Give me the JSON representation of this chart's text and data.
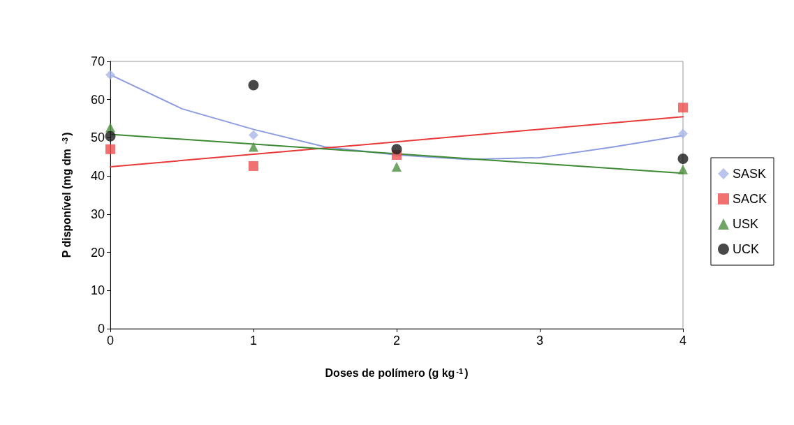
{
  "chart_data": {
    "type": "scatter",
    "xlabel": "Doses de polímero (g kg$^{-1}$)",
    "ylabel": "P disponível (mg dm $^{-3}$)",
    "xlim": [
      0,
      4
    ],
    "xticks": [
      0,
      1,
      2,
      3,
      4
    ],
    "ylim": [
      0,
      70
    ],
    "yticks": [
      0,
      10,
      20,
      30,
      40,
      50,
      60,
      70
    ],
    "grid": false,
    "legend": "right",
    "series": [
      {
        "name": "SASK",
        "marker": "diamond",
        "color": "#a9b6ea",
        "x": [
          0,
          1,
          2,
          4
        ],
        "values": [
          66.5,
          50.7,
          null,
          51.1
        ]
      },
      {
        "name": "SACK",
        "marker": "square",
        "color": "#ee4d4d",
        "x": [
          0,
          1,
          2,
          4
        ],
        "values": [
          47.0,
          42.6,
          45.5,
          57.9
        ]
      },
      {
        "name": "USK",
        "marker": "triangle",
        "color": "#4e8f3f",
        "x": [
          0,
          1,
          2,
          4
        ],
        "values": [
          52.7,
          47.6,
          42.4,
          41.7
        ]
      },
      {
        "name": "UCK",
        "marker": "circle",
        "color": "#1a1a1a",
        "x": [
          0,
          1,
          2,
          4
        ],
        "values": [
          50.4,
          63.8,
          47.0,
          44.5
        ]
      },
      {
        "type": "line",
        "marker": "none",
        "color": "#8b9be0",
        "x": [
          0,
          0.5,
          1,
          1.5,
          2,
          2.5,
          3,
          3.5,
          4
        ],
        "values": [
          66.5,
          57.6,
          52.2,
          47.6,
          45.5,
          44.3,
          44.8,
          47.5,
          50.6
        ]
      },
      {
        "type": "line",
        "marker": "none",
        "color": "#e83838",
        "x": [
          0,
          4
        ],
        "values": [
          42.4,
          55.5
        ]
      },
      {
        "type": "line",
        "marker": "none",
        "color": "#3c8a32",
        "x": [
          0,
          4
        ],
        "values": [
          50.9,
          40.7
        ]
      }
    ]
  }
}
